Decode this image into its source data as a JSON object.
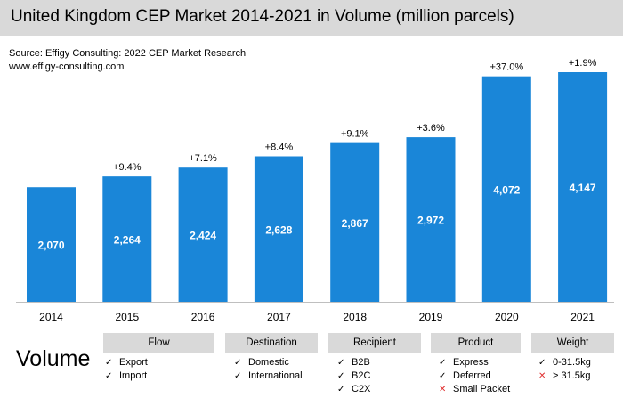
{
  "header": {
    "title": "United Kingdom CEP Market 2014-2021 in Volume (million parcels)",
    "source_line1": "Source: Effigy Consulting: 2022 CEP Market Research",
    "source_line2": "www.effigy-consulting.com"
  },
  "colors": {
    "bar": "#1a86d8",
    "header_bg": "#d9d9d9",
    "negative_mark": "#e03030"
  },
  "chart_data": {
    "type": "bar",
    "title": "United Kingdom CEP Market 2014-2021 in Volume (million parcels)",
    "categories": [
      "2014",
      "2015",
      "2016",
      "2017",
      "2018",
      "2019",
      "2020",
      "2021"
    ],
    "values": [
      2070,
      2264,
      2424,
      2628,
      2867,
      2972,
      4072,
      4147
    ],
    "value_labels": [
      "2,070",
      "2,264",
      "2,424",
      "2,628",
      "2,867",
      "2,972",
      "4,072",
      "4,147"
    ],
    "growth_labels": [
      "",
      "+9.4%",
      "+7.1%",
      "+8.4%",
      "+9.1%",
      "+3.6%",
      "+37.0%",
      "+1.9%"
    ],
    "ylim": [
      0,
      4200
    ],
    "grid": false,
    "legend": "none"
  },
  "volume_label": "Volume",
  "categories_panel": [
    {
      "header": "Flow",
      "items": [
        {
          "label": "Export",
          "included": true
        },
        {
          "label": "Import",
          "included": true
        }
      ]
    },
    {
      "header": "Destination",
      "items": [
        {
          "label": "Domestic",
          "included": true
        },
        {
          "label": "International",
          "included": true
        }
      ]
    },
    {
      "header": "Recipient",
      "items": [
        {
          "label": "B2B",
          "included": true
        },
        {
          "label": "B2C",
          "included": true
        },
        {
          "label": "C2X",
          "included": true
        }
      ]
    },
    {
      "header": "Product",
      "items": [
        {
          "label": "Express",
          "included": true
        },
        {
          "label": "Deferred",
          "included": true
        },
        {
          "label": "Small Packet",
          "included": false
        }
      ]
    },
    {
      "header": "Weight",
      "items": [
        {
          "label": "0-31.5kg",
          "included": true
        },
        {
          "label": "> 31.5kg",
          "included": false
        }
      ]
    }
  ]
}
